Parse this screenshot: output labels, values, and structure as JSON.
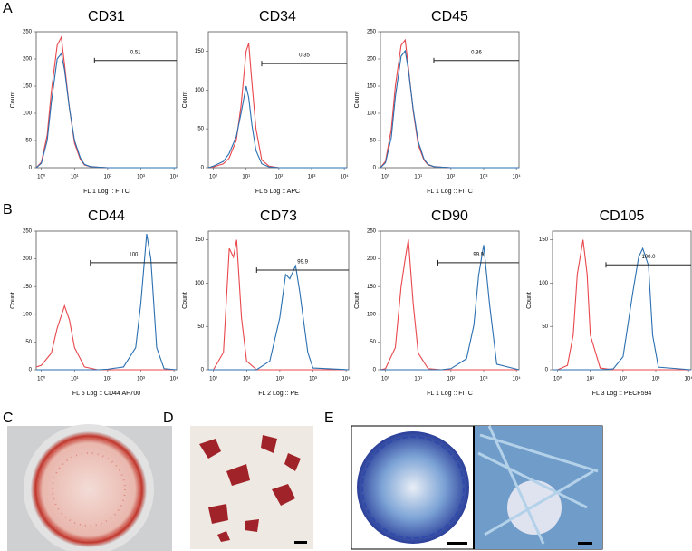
{
  "panels": [
    "A",
    "B",
    "C",
    "D",
    "E"
  ],
  "chart_data": [
    {
      "type": "line",
      "title": "CD31",
      "xlabel": "FL 1 Log :: FITC",
      "ylabel": "Count",
      "xscale": "log",
      "xlim": [
        0.7,
        12000
      ],
      "xticks": [
        {
          "value": 1,
          "label": "10⁰"
        },
        {
          "value": 10,
          "label": "10¹"
        },
        {
          "value": 100,
          "label": "10²"
        },
        {
          "value": 1000,
          "label": "10³"
        },
        {
          "value": 10000,
          "label": "10⁴"
        }
      ],
      "ylim": [
        0,
        250
      ],
      "yticks": [
        0,
        50,
        100,
        150,
        200,
        250
      ],
      "x": [
        0.7,
        1,
        1.5,
        2,
        3,
        4,
        5,
        7,
        10,
        15,
        20,
        30,
        50,
        100,
        1000,
        12000
      ],
      "series": [
        {
          "color": "#e8474c",
          "values": [
            0,
            10,
            60,
            140,
            225,
            240,
            190,
            110,
            45,
            15,
            5,
            2,
            1,
            0,
            0,
            0
          ]
        },
        {
          "color": "#2a6fb0",
          "values": [
            0,
            8,
            50,
            120,
            200,
            210,
            180,
            110,
            50,
            18,
            6,
            2,
            1,
            0,
            0,
            0
          ]
        }
      ],
      "gate": {
        "x": 40,
        "y": 197,
        "value": 0.51
      }
    },
    {
      "type": "line",
      "title": "CD34",
      "xlabel": "FL 5 Log :: APC",
      "ylabel": "Count",
      "xscale": "log",
      "xlim": [
        0.7,
        12000
      ],
      "xticks": [
        {
          "value": 1,
          "label": "10⁰"
        },
        {
          "value": 10,
          "label": "10¹"
        },
        {
          "value": 100,
          "label": "10²"
        },
        {
          "value": 1000,
          "label": "10³"
        },
        {
          "value": 10000,
          "label": "10⁴"
        }
      ],
      "ylim": [
        0,
        175
      ],
      "yticks": [
        0,
        50,
        100,
        150
      ],
      "x": [
        0.7,
        1,
        2,
        3,
        5,
        7,
        10,
        12,
        15,
        20,
        30,
        50,
        100,
        1000,
        12000
      ],
      "series": [
        {
          "color": "#e8474c",
          "values": [
            0,
            1,
            5,
            12,
            35,
            80,
            150,
            160,
            110,
            50,
            10,
            2,
            0,
            0,
            0
          ]
        },
        {
          "color": "#2a6fb0",
          "values": [
            0,
            2,
            8,
            18,
            40,
            70,
            105,
            90,
            55,
            22,
            5,
            1,
            0,
            0,
            0
          ]
        }
      ],
      "gate": {
        "x": 30,
        "y": 134,
        "value": 0.35
      }
    },
    {
      "type": "line",
      "title": "CD45",
      "xlabel": "FL 1 Log :: FITC",
      "ylabel": "Count",
      "xscale": "log",
      "xlim": [
        0.7,
        12000
      ],
      "xticks": [
        {
          "value": 1,
          "label": "10⁰"
        },
        {
          "value": 10,
          "label": "10¹"
        },
        {
          "value": 100,
          "label": "10²"
        },
        {
          "value": 1000,
          "label": "10³"
        },
        {
          "value": 10000,
          "label": "10⁴"
        }
      ],
      "ylim": [
        0,
        250
      ],
      "yticks": [
        0,
        50,
        100,
        150,
        200,
        250
      ],
      "x": [
        0.7,
        1,
        1.5,
        2,
        3,
        4,
        5,
        7,
        10,
        15,
        20,
        30,
        50,
        100,
        1000,
        12000
      ],
      "series": [
        {
          "color": "#e8474c",
          "values": [
            0,
            12,
            70,
            150,
            225,
            235,
            185,
            105,
            42,
            14,
            5,
            2,
            1,
            0,
            0,
            0
          ]
        },
        {
          "color": "#2a6fb0",
          "values": [
            0,
            9,
            55,
            130,
            205,
            215,
            180,
            108,
            48,
            16,
            6,
            2,
            1,
            0,
            0,
            0
          ]
        }
      ],
      "gate": {
        "x": 30,
        "y": 197,
        "value": 0.36
      }
    },
    {
      "type": "line",
      "title": "CD44",
      "xlabel": "FL 5 Log :: CD44 AF700",
      "ylabel": "Count",
      "xscale": "log",
      "xlim": [
        0.7,
        12000
      ],
      "xticks": [
        {
          "value": 1,
          "label": "10⁰"
        },
        {
          "value": 10,
          "label": "10¹"
        },
        {
          "value": 100,
          "label": "10²"
        },
        {
          "value": 1000,
          "label": "10³"
        },
        {
          "value": 10000,
          "label": "10⁴"
        }
      ],
      "ylim": [
        0,
        250
      ],
      "yticks": [
        0,
        50,
        100,
        150,
        200,
        250
      ],
      "x": [
        0.7,
        1,
        2,
        3,
        5,
        7,
        10,
        20,
        50,
        100,
        300,
        700,
        1000,
        1500,
        2000,
        3000,
        5000,
        12000
      ],
      "series": [
        {
          "color": "#e8474c",
          "values": [
            5,
            8,
            30,
            75,
            115,
            90,
            40,
            5,
            0,
            0,
            0,
            0,
            0,
            0,
            0,
            0,
            0,
            0
          ]
        },
        {
          "color": "#2a6fb0",
          "values": [
            0,
            0,
            0,
            0,
            0,
            0,
            0,
            0,
            0,
            1,
            5,
            40,
            120,
            245,
            200,
            40,
            2,
            0
          ]
        }
      ],
      "gate": {
        "x": 30,
        "y": 193,
        "value": 100
      }
    },
    {
      "type": "line",
      "title": "CD73",
      "xlabel": "FL 2 Log :: PE",
      "ylabel": "Count",
      "xscale": "log",
      "xlim": [
        0.7,
        12000
      ],
      "xticks": [
        {
          "value": 1,
          "label": "10⁰"
        },
        {
          "value": 10,
          "label": "10¹"
        },
        {
          "value": 100,
          "label": "10²"
        },
        {
          "value": 1000,
          "label": "10³"
        },
        {
          "value": 10000,
          "label": "10⁴"
        }
      ],
      "ylim": [
        0,
        160
      ],
      "yticks": [
        0,
        50,
        100,
        150
      ],
      "x": [
        0.7,
        1,
        2,
        3,
        4,
        5,
        7,
        10,
        20,
        50,
        100,
        150,
        200,
        300,
        400,
        700,
        1000,
        12000
      ],
      "series": [
        {
          "color": "#e8474c",
          "values": [
            0,
            0,
            20,
            140,
            130,
            150,
            60,
            10,
            0,
            0,
            0,
            0,
            0,
            0,
            0,
            0,
            0,
            0
          ]
        },
        {
          "color": "#2a6fb0",
          "values": [
            0,
            0,
            0,
            0,
            0,
            0,
            0,
            0,
            0,
            10,
            60,
            110,
            105,
            120,
            90,
            20,
            2,
            0
          ]
        }
      ],
      "gate": {
        "x": 20,
        "y": 115,
        "value": 99.9
      }
    },
    {
      "type": "line",
      "title": "CD90",
      "xlabel": "FL 1 Log :: FITC",
      "ylabel": "Count",
      "xscale": "log",
      "xlim": [
        0.7,
        12000
      ],
      "xticks": [
        {
          "value": 1,
          "label": "10⁰"
        },
        {
          "value": 10,
          "label": "10¹"
        },
        {
          "value": 100,
          "label": "10²"
        },
        {
          "value": 1000,
          "label": "10³"
        },
        {
          "value": 10000,
          "label": "10⁴"
        }
      ],
      "ylim": [
        0,
        250
      ],
      "yticks": [
        0,
        50,
        100,
        150,
        200,
        250
      ],
      "x": [
        0.7,
        1,
        2,
        3,
        4,
        5,
        7,
        10,
        20,
        50,
        100,
        300,
        500,
        700,
        1000,
        1500,
        2500,
        12000
      ],
      "series": [
        {
          "color": "#e8474c",
          "values": [
            0,
            2,
            40,
            150,
            200,
            235,
            120,
            30,
            2,
            0,
            0,
            0,
            0,
            0,
            0,
            0,
            0,
            0
          ]
        },
        {
          "color": "#2a6fb0",
          "values": [
            0,
            0,
            0,
            0,
            0,
            0,
            0,
            0,
            0,
            0,
            2,
            20,
            80,
            170,
            225,
            120,
            10,
            0
          ]
        }
      ],
      "gate": {
        "x": 40,
        "y": 193,
        "value": 99.9
      }
    },
    {
      "type": "line",
      "title": "CD105",
      "xlabel": "FL 3 Log :: PECF594",
      "ylabel": "Count",
      "xscale": "log",
      "xlim": [
        0.7,
        12000
      ],
      "xticks": [
        {
          "value": 1,
          "label": "10⁰"
        },
        {
          "value": 10,
          "label": "10¹"
        },
        {
          "value": 100,
          "label": "10²"
        },
        {
          "value": 1000,
          "label": "10³"
        },
        {
          "value": 10000,
          "label": "10⁴"
        }
      ],
      "ylim": [
        0,
        160
      ],
      "yticks": [
        0,
        50,
        100,
        150
      ],
      "x": [
        0.7,
        1,
        2,
        3,
        4,
        6,
        8,
        10,
        20,
        50,
        100,
        200,
        300,
        400,
        600,
        800,
        1200,
        12000
      ],
      "series": [
        {
          "color": "#e8474c",
          "values": [
            0,
            0,
            5,
            40,
            110,
            150,
            110,
            40,
            2,
            0,
            0,
            0,
            0,
            0,
            0,
            0,
            0,
            0
          ]
        },
        {
          "color": "#2a6fb0",
          "values": [
            0,
            0,
            0,
            0,
            0,
            0,
            0,
            0,
            0,
            1,
            15,
            90,
            130,
            140,
            120,
            40,
            3,
            0
          ]
        }
      ],
      "gate": {
        "x": 30,
        "y": 121,
        "value": 100,
        "label": "100.0"
      }
    }
  ]
}
